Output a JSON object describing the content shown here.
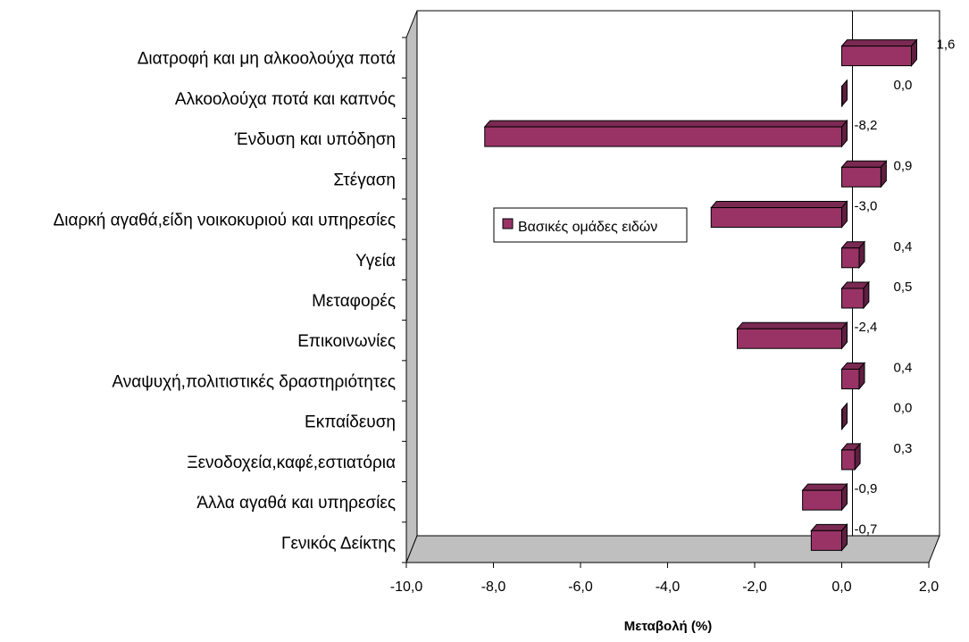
{
  "chart_data": {
    "type": "bar",
    "orientation": "horizontal",
    "style": "3d",
    "categories": [
      "Διατροφή και μη αλκοολούχα ποτά",
      "Αλκοολούχα ποτά και καπνός",
      "Ένδυση και υπόδηση",
      "Στέγαση",
      "Διαρκή αγαθά,είδη νοικοκυριού και υπηρεσίες",
      "Υγεία",
      "Μεταφορές",
      "Επικοινωνίες",
      "Αναψυχή,πολιτιστικές δραστηριότητες",
      "Εκπαίδευση",
      "Ξενοδοχεία,καφέ,εστιατόρια",
      "Άλλα αγαθά και υπηρεσίες",
      "Γενικός Δείκτης"
    ],
    "series": [
      {
        "name": "Βασικές ομάδες ειδών",
        "color": "#993366",
        "values": [
          1.6,
          0.0,
          -8.2,
          0.9,
          -3.0,
          0.4,
          0.5,
          -2.4,
          0.4,
          0.0,
          0.3,
          -0.9,
          -0.7
        ],
        "labels": [
          "1,6",
          "0,0",
          "-8,2",
          "0,9",
          "-3,0",
          "0,4",
          "0,5",
          "-2,4",
          "0,4",
          "0,0",
          "0,3",
          "-0,9",
          "-0,7"
        ]
      }
    ],
    "xlim": [
      -10,
      2
    ],
    "xticks": [
      -10,
      -8,
      -6,
      -4,
      -2,
      0,
      2
    ],
    "xtick_labels": [
      "-10,0",
      "-8,0",
      "-6,0",
      "-4,0",
      "-2,0",
      "0,0",
      "2,0"
    ],
    "xlabel": "Μεταβολή (%)",
    "ylabel": "",
    "title": "",
    "grid": false,
    "legend": {
      "position": "center",
      "entries": [
        "Βασικές ομάδες ειδών"
      ]
    }
  }
}
